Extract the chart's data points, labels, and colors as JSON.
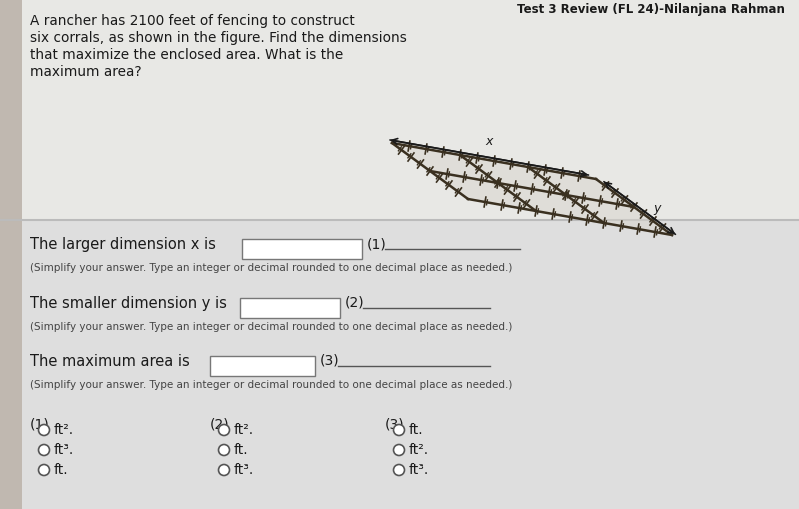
{
  "title": "Test 3 Review (FL 24)-Nilanjana Rahman",
  "problem_text_lines": [
    "A rancher has 2100 feet of fencing to construct",
    "six corrals, as shown in the figure. Find the dimensions",
    "that maximize the enclosed area. What is the",
    "maximum area?"
  ],
  "q1_label": "The larger dimension x is",
  "q1_num": "(1)",
  "q1_sub": "(Simplify your answer. Type an integer or decimal rounded to one decimal place as needed.)",
  "q2_label": "The smaller dimension y is",
  "q2_num": "(2)",
  "q2_sub": "(Simplify your answer. Type an integer or decimal rounded to one decimal place as needed.)",
  "q3_label": "The maximum area is",
  "q3_num": "(3)",
  "q3_sub": "(Simplify your answer. Type an integer or decimal rounded to one decimal place as needed.)",
  "radio_col1_label": "(1)",
  "radio_col1_opts": [
    "ft².",
    "ft³.",
    "ft."
  ],
  "radio_col2_label": "(2)",
  "radio_col2_opts": [
    "ft².",
    "ft.",
    "ft³."
  ],
  "radio_col3_label": "(3)",
  "radio_col3_opts": [
    "ft.",
    "ft².",
    "ft³."
  ],
  "bg_top": "#e8e8e5",
  "bg_bottom": "#dedede",
  "text_color": "#1a1a1a",
  "line_color": "#555555",
  "fence_color": "#3a3020",
  "separator_color": "#bbbbbb"
}
